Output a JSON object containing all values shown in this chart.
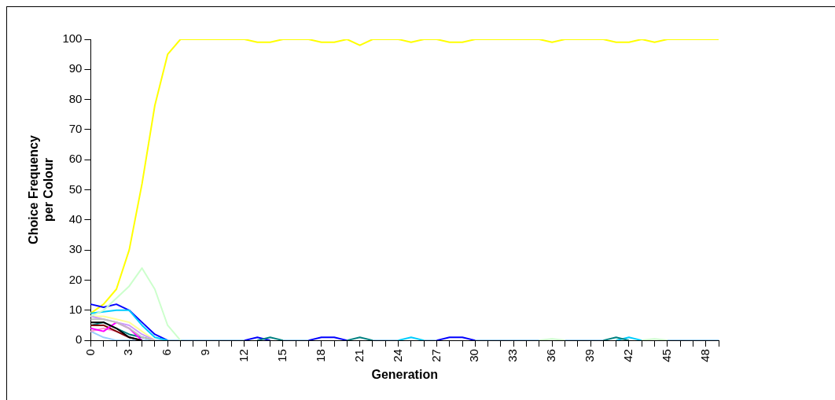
{
  "chart_data": {
    "type": "line",
    "xlabel": "Generation",
    "ylabel": "Choice Frequency per Colour",
    "categories": [
      "0",
      null,
      null,
      "3",
      null,
      null,
      "6",
      null,
      null,
      "9",
      null,
      null,
      "12",
      null,
      null,
      "15",
      null,
      null,
      "18",
      null,
      null,
      "21",
      null,
      null,
      "24",
      null,
      null,
      "27",
      null,
      null,
      "30",
      null,
      null,
      "33",
      null,
      null,
      "36",
      null,
      null,
      "39",
      null,
      null,
      "42",
      null,
      null,
      "45",
      null,
      null,
      "48",
      null
    ],
    "ylim": [
      0,
      100
    ],
    "yticks": [
      0,
      10,
      20,
      30,
      40,
      50,
      60,
      70,
      80,
      90,
      100
    ],
    "grid": false,
    "legend": false,
    "series": [
      {
        "color": "#ccffcc",
        "values": [
          8,
          10,
          14,
          18,
          24,
          17,
          5,
          0,
          null,
          null,
          null,
          null,
          null,
          null,
          null,
          null,
          null,
          null,
          null,
          null,
          null,
          null,
          null,
          null,
          null,
          null,
          null,
          null,
          null,
          null,
          null,
          null,
          null,
          null,
          null,
          0,
          0.5,
          0,
          null,
          null,
          null,
          null,
          null,
          0,
          0.5,
          0,
          null,
          null,
          null,
          null
        ]
      },
      {
        "color": "#c0c0c0",
        "values": [
          7,
          7,
          6,
          4,
          1,
          0,
          null,
          null,
          null,
          null,
          null,
          null,
          null,
          null,
          null,
          null,
          null,
          null,
          null,
          null,
          null,
          null,
          null,
          null,
          null,
          null,
          null,
          null,
          null,
          null,
          null,
          null,
          null,
          null,
          null,
          null,
          null,
          null,
          null,
          null,
          null,
          null,
          null,
          null,
          null,
          null,
          null,
          null,
          null,
          null
        ]
      },
      {
        "color": "#cc99ff",
        "values": [
          8,
          7,
          6,
          5,
          2,
          0,
          null,
          null,
          null,
          null,
          null,
          null,
          null,
          null,
          null,
          null,
          null,
          null,
          null,
          null,
          null,
          null,
          null,
          null,
          null,
          null,
          null,
          null,
          null,
          null,
          null,
          null,
          null,
          null,
          null,
          null,
          null,
          null,
          null,
          null,
          null,
          null,
          null,
          null,
          null,
          null,
          null,
          null,
          null,
          null
        ]
      },
      {
        "color": "#ffff99",
        "values": [
          8,
          8,
          7,
          6,
          3,
          0,
          null,
          null,
          null,
          null,
          null,
          null,
          null,
          null,
          null,
          null,
          null,
          null,
          null,
          null,
          null,
          null,
          null,
          null,
          null,
          null,
          null,
          null,
          null,
          null,
          null,
          null,
          null,
          null,
          null,
          null,
          null,
          null,
          null,
          null,
          null,
          null,
          null,
          null,
          null,
          null,
          null,
          null,
          null,
          null
        ]
      },
      {
        "color": "#000000",
        "values": [
          6,
          6,
          4,
          1,
          0,
          null,
          null,
          null,
          null,
          null,
          null,
          null,
          null,
          null,
          null,
          null,
          null,
          null,
          null,
          null,
          null,
          null,
          null,
          null,
          null,
          null,
          null,
          null,
          null,
          null,
          null,
          null,
          null,
          null,
          null,
          null,
          null,
          null,
          null,
          null,
          null,
          null,
          null,
          null,
          null,
          null,
          null,
          null,
          null,
          null
        ]
      },
      {
        "color": "#ff00ff",
        "values": [
          4,
          3,
          6,
          4,
          0,
          null,
          null,
          null,
          null,
          null,
          null,
          null,
          null,
          null,
          null,
          null,
          null,
          null,
          null,
          null,
          null,
          null,
          null,
          null,
          null,
          null,
          null,
          null,
          null,
          null,
          null,
          null,
          null,
          null,
          null,
          null,
          null,
          null,
          null,
          null,
          null,
          null,
          null,
          null,
          null,
          null,
          null,
          null,
          null,
          null
        ]
      },
      {
        "color": "#800000",
        "values": [
          5,
          5,
          3,
          1,
          0,
          null,
          null,
          null,
          null,
          null,
          null,
          null,
          null,
          null,
          null,
          null,
          null,
          null,
          null,
          null,
          null,
          null,
          null,
          null,
          null,
          null,
          null,
          null,
          null,
          null,
          null,
          null,
          null,
          null,
          null,
          null,
          null,
          null,
          null,
          null,
          null,
          null,
          null,
          null,
          null,
          null,
          null,
          null,
          null,
          null
        ]
      },
      {
        "color": "#ff99cc",
        "values": [
          3,
          4,
          3,
          1,
          0,
          null,
          null,
          null,
          null,
          null,
          null,
          null,
          null,
          null,
          null,
          null,
          null,
          null,
          null,
          null,
          null,
          null,
          null,
          null,
          null,
          null,
          null,
          null,
          null,
          null,
          null,
          null,
          null,
          null,
          null,
          null,
          null,
          null,
          null,
          null,
          null,
          null,
          null,
          null,
          null,
          null,
          null,
          null,
          null,
          null
        ]
      },
      {
        "color": "#008080",
        "values": [
          5,
          6,
          4,
          2,
          1,
          0,
          null,
          null,
          null,
          null,
          null,
          null,
          null,
          0,
          1,
          0,
          null,
          null,
          null,
          null,
          0,
          1,
          0,
          null,
          null,
          null,
          null,
          null,
          null,
          null,
          null,
          null,
          null,
          null,
          null,
          null,
          null,
          null,
          null,
          null,
          0,
          1,
          0,
          null,
          null,
          null,
          null,
          null,
          null,
          null
        ]
      },
      {
        "color": "#00ccff",
        "values": [
          9,
          9.5,
          10,
          10,
          5,
          1,
          0,
          null,
          null,
          null,
          null,
          null,
          null,
          null,
          null,
          null,
          null,
          null,
          null,
          null,
          null,
          null,
          null,
          null,
          0,
          1,
          0,
          null,
          null,
          null,
          null,
          null,
          null,
          null,
          null,
          null,
          null,
          null,
          null,
          null,
          null,
          0,
          1,
          0,
          null,
          null,
          null,
          null,
          null,
          null
        ]
      },
      {
        "color": "#0000ff",
        "values": [
          12,
          11,
          12,
          10,
          6,
          2,
          0,
          null,
          null,
          null,
          null,
          null,
          0,
          1,
          0,
          null,
          null,
          0,
          1,
          1,
          0,
          null,
          null,
          null,
          null,
          null,
          null,
          0,
          1,
          1,
          0,
          null,
          null,
          null,
          null,
          null,
          null,
          null,
          null,
          null,
          null,
          null,
          null,
          null,
          null,
          null,
          null,
          null,
          null,
          null
        ]
      },
      {
        "color": "#ffff00",
        "values": [
          9,
          12,
          17,
          30,
          52,
          78,
          95,
          100,
          100,
          100,
          100,
          100,
          100,
          99,
          99,
          100,
          100,
          100,
          99,
          99,
          100,
          98,
          100,
          100,
          100,
          99,
          100,
          100,
          99,
          99,
          100,
          100,
          100,
          100,
          100,
          100,
          99,
          100,
          100,
          100,
          100,
          99,
          99,
          100,
          99,
          100,
          100,
          100,
          100,
          100
        ]
      },
      {
        "color": "#99ccff",
        "values": [
          3,
          1,
          0,
          0,
          0,
          0,
          0,
          0,
          0,
          0,
          0,
          0,
          0,
          null,
          null,
          0,
          0,
          0,
          null,
          null,
          null,
          null,
          0,
          0,
          0,
          null,
          0,
          0,
          null,
          null,
          0,
          0,
          0,
          0,
          0,
          0,
          null,
          0,
          0,
          0,
          0,
          null,
          null,
          null,
          null,
          0,
          0,
          0,
          0,
          0
        ]
      }
    ]
  }
}
